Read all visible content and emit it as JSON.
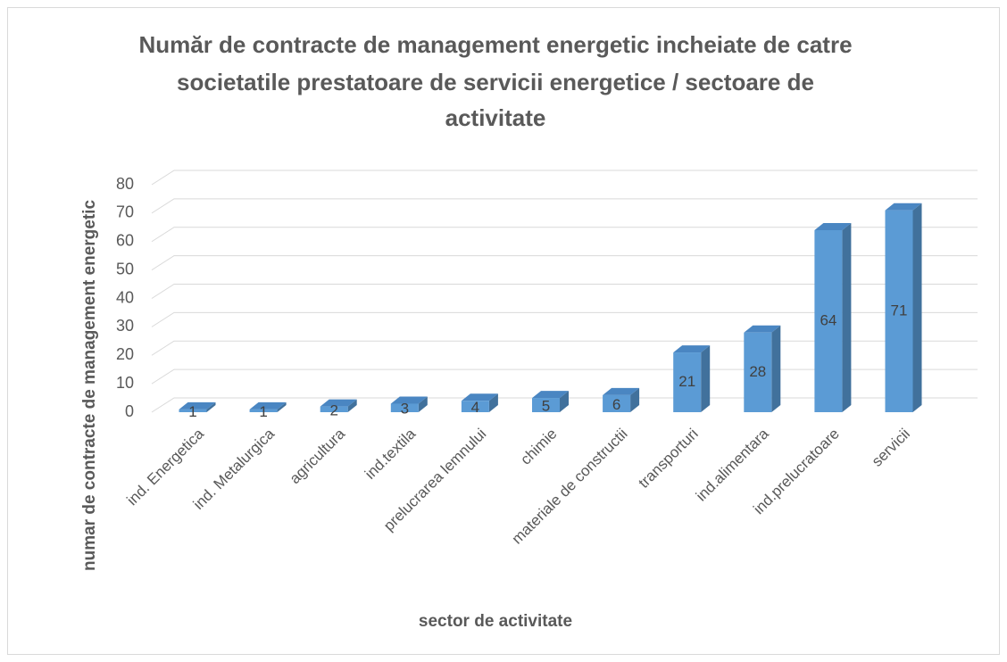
{
  "chart_data": {
    "type": "bar3d",
    "title_lines": [
      "Număr de contracte de management energetic incheiate de catre",
      "societatile prestatoare de servicii energetice / sectoare de",
      "activitate"
    ],
    "x_label": "sector de activitate",
    "y_label": "numar de contracte de management energetic",
    "categories": [
      "ind. Energetica",
      "ind. Metalurgica",
      "agricultura",
      "ind.textila",
      "prelucrarea lemnului",
      "chimie",
      "materiale de constructii",
      "transporturi",
      "ind.alimentara",
      "ind.prelucratoare",
      "servicii"
    ],
    "values": [
      1,
      1,
      2,
      3,
      4,
      5,
      6,
      21,
      28,
      64,
      71
    ],
    "color": "#5b9bd5",
    "ylim": [
      0,
      80
    ],
    "yticks": [
      0,
      10,
      20,
      30,
      40,
      50,
      60,
      70,
      80
    ],
    "grid": true
  }
}
